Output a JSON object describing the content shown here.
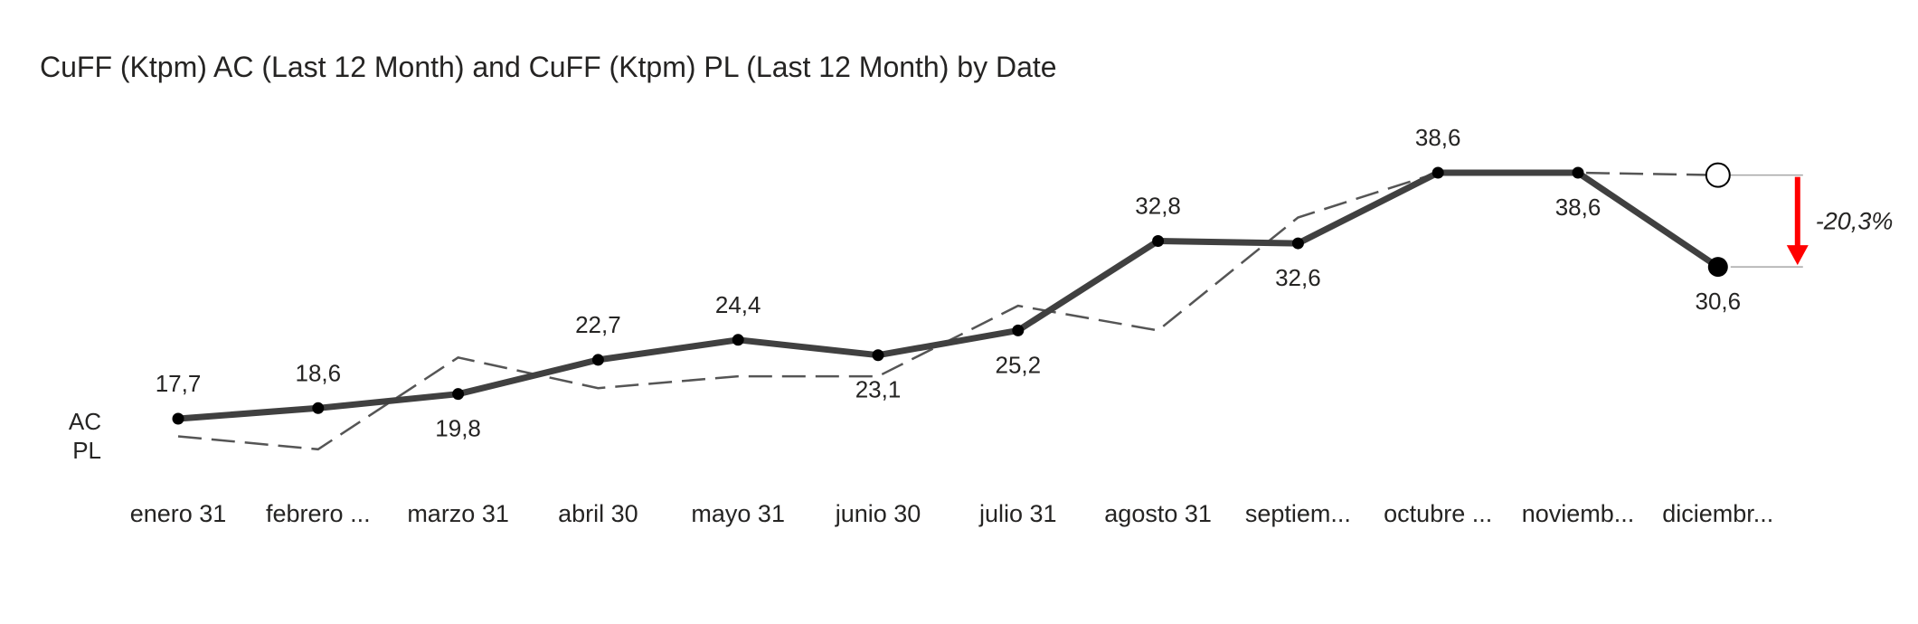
{
  "chart_data": {
    "type": "line",
    "title": "CuFF (Ktpm) AC (Last 12 Month) and CuFF (Ktpm) PL (Last 12 Month) by Date",
    "categories": [
      "enero 31",
      "febrero ...",
      "marzo 31",
      "abril 30",
      "mayo 31",
      "junio 30",
      "julio 31",
      "agosto 31",
      "septiem...",
      "octubre ...",
      "noviemb...",
      "diciembr..."
    ],
    "series": [
      {
        "name": "AC",
        "style": "solid",
        "color": "#404040",
        "values": [
          17.7,
          18.6,
          19.8,
          22.7,
          24.4,
          23.1,
          25.2,
          32.8,
          32.6,
          38.6,
          38.6,
          30.6
        ],
        "labels": [
          "17,7",
          "18,6",
          "19,8",
          "22,7",
          "24,4",
          "23,1",
          "25,2",
          "32,8",
          "32,6",
          "38,6",
          "38,6",
          "30,6"
        ],
        "label_positions": [
          "above",
          "above",
          "below",
          "above",
          "above",
          "below",
          "below",
          "above",
          "below",
          "above",
          "below",
          "below"
        ]
      },
      {
        "name": "PL",
        "style": "dashed",
        "color": "#555555",
        "values": [
          16.2,
          15.1,
          22.9,
          20.3,
          21.3,
          21.3,
          27.3,
          25.2,
          34.8,
          38.6,
          38.6,
          38.4
        ]
      }
    ],
    "variance": {
      "label": "-20,3%",
      "color": "#ff0000"
    },
    "ylim": [
      15,
      40
    ],
    "grid": false,
    "legend": "inline-left"
  }
}
